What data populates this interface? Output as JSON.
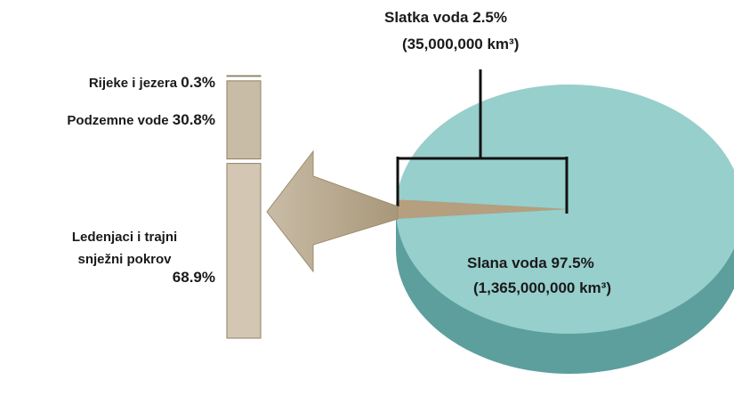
{
  "chart_data": [
    {
      "type": "pie",
      "categories": [
        "Slatka voda",
        "Slana voda"
      ],
      "values": [
        2.5,
        97.5
      ],
      "value_labels": [
        "2.5%",
        "97.5%"
      ],
      "volume_labels": [
        "(35,000,000 km³)",
        "(1,365,000,000 km³)"
      ],
      "colors": [
        "#b59f7e",
        "#97cfcc"
      ]
    },
    {
      "type": "stacked-bar",
      "categories": [
        "Rijeke i jezera",
        "Podzemne vode",
        "Ledenjaci i trajni snježni pokrov"
      ],
      "values": [
        0.3,
        30.8,
        68.9
      ],
      "value_labels": [
        "0.3%",
        "30.8%",
        "68.9%"
      ],
      "colors": [
        "#a89676",
        "#c9bca6",
        "#d3c7b3"
      ]
    }
  ]
}
